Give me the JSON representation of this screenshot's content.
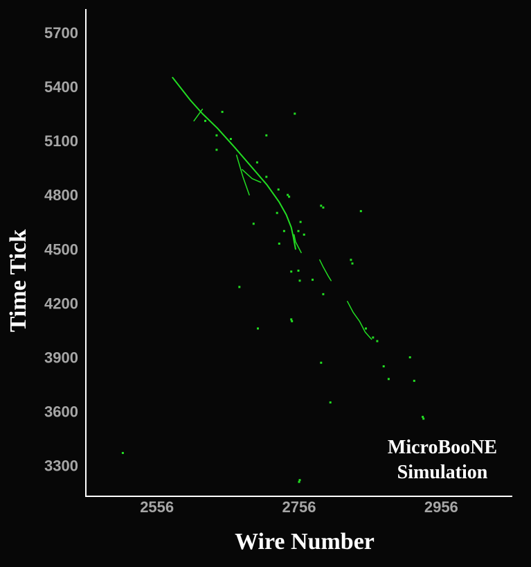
{
  "chart_data": {
    "type": "scatter",
    "title": "",
    "xlabel": "Wire Number",
    "ylabel": "Time Tick",
    "xlim": [
      2456,
      3056
    ],
    "ylim": [
      3130,
      5830
    ],
    "xticks": [
      "2556",
      "2756",
      "2956"
    ],
    "yticks": [
      "3300",
      "3600",
      "3900",
      "4200",
      "4500",
      "4800",
      "5100",
      "5400",
      "5700"
    ],
    "grid": false,
    "background": "#070707",
    "axis_color": "#ffffff",
    "tick_color": "#a6a6a6",
    "hit_color": "#22dd22",
    "annotation": [
      "MicroBooNE",
      "Simulation"
    ],
    "tracks": [
      {
        "name": "primary-track",
        "points": [
          [
            2578,
            5450
          ],
          [
            2603,
            5325
          ],
          [
            2620,
            5250
          ],
          [
            2641,
            5170
          ],
          [
            2665,
            5065
          ],
          [
            2688,
            4960
          ],
          [
            2711,
            4855
          ],
          [
            2728,
            4760
          ],
          [
            2738,
            4690
          ],
          [
            2745,
            4620
          ],
          [
            2748,
            4565
          ],
          [
            2751,
            4500
          ]
        ]
      },
      {
        "name": "branch-a",
        "points": [
          [
            2620,
            5275
          ],
          [
            2608,
            5210
          ]
        ]
      },
      {
        "name": "branch-b",
        "points": [
          [
            2668,
            5020
          ],
          [
            2677,
            4900
          ],
          [
            2686,
            4800
          ]
        ]
      },
      {
        "name": "branch-c",
        "points": [
          [
            2676,
            4940
          ],
          [
            2690,
            4890
          ],
          [
            2702,
            4870
          ]
        ]
      },
      {
        "name": "branch-d",
        "points": [
          [
            2749,
            4580
          ],
          [
            2751,
            4540
          ],
          [
            2759,
            4480
          ]
        ]
      },
      {
        "name": "secondary-track",
        "points": [
          [
            2785,
            4440
          ],
          [
            2790,
            4400
          ],
          [
            2797,
            4350
          ],
          [
            2801,
            4325
          ]
        ]
      },
      {
        "name": "tertiary-track",
        "points": [
          [
            2824,
            4210
          ],
          [
            2832,
            4150
          ],
          [
            2841,
            4100
          ],
          [
            2849,
            4040
          ],
          [
            2858,
            4000
          ]
        ]
      }
    ],
    "hits": [
      [
        2624,
        5210
      ],
      [
        2640,
        5130
      ],
      [
        2648,
        5260
      ],
      [
        2710,
        5130
      ],
      [
        2750,
        5250
      ],
      [
        2740,
        4800
      ],
      [
        2742,
        4790
      ],
      [
        2725,
        4700
      ],
      [
        2787,
        4740
      ],
      [
        2790,
        4730
      ],
      [
        2843,
        4710
      ],
      [
        2692,
        4640
      ],
      [
        2735,
        4600
      ],
      [
        2728,
        4530
      ],
      [
        2763,
        4580
      ],
      [
        2745,
        4375
      ],
      [
        2755,
        4380
      ],
      [
        2757,
        4325
      ],
      [
        2775,
        4330
      ],
      [
        2790,
        4250
      ],
      [
        2745,
        4110
      ],
      [
        2746,
        4100
      ],
      [
        2672,
        4290
      ],
      [
        2698,
        4060
      ],
      [
        2787,
        3870
      ],
      [
        2875,
        3850
      ],
      [
        2882,
        3780
      ],
      [
        2912,
        3900
      ],
      [
        2918,
        3770
      ],
      [
        2800,
        3650
      ],
      [
        2930,
        3570
      ],
      [
        2931,
        3560
      ],
      [
        2757,
        3220
      ],
      [
        2756,
        3210
      ],
      [
        2508,
        3370
      ],
      [
        2755,
        4600
      ],
      [
        2758,
        4650
      ],
      [
        2710,
        4900
      ],
      [
        2697,
        4980
      ],
      [
        2727,
        4830
      ],
      [
        2640,
        5050
      ],
      [
        2660,
        5110
      ],
      [
        2850,
        4060
      ],
      [
        2860,
        4010
      ],
      [
        2866,
        3990
      ],
      [
        2831,
        4420
      ],
      [
        2829,
        4440
      ]
    ]
  }
}
